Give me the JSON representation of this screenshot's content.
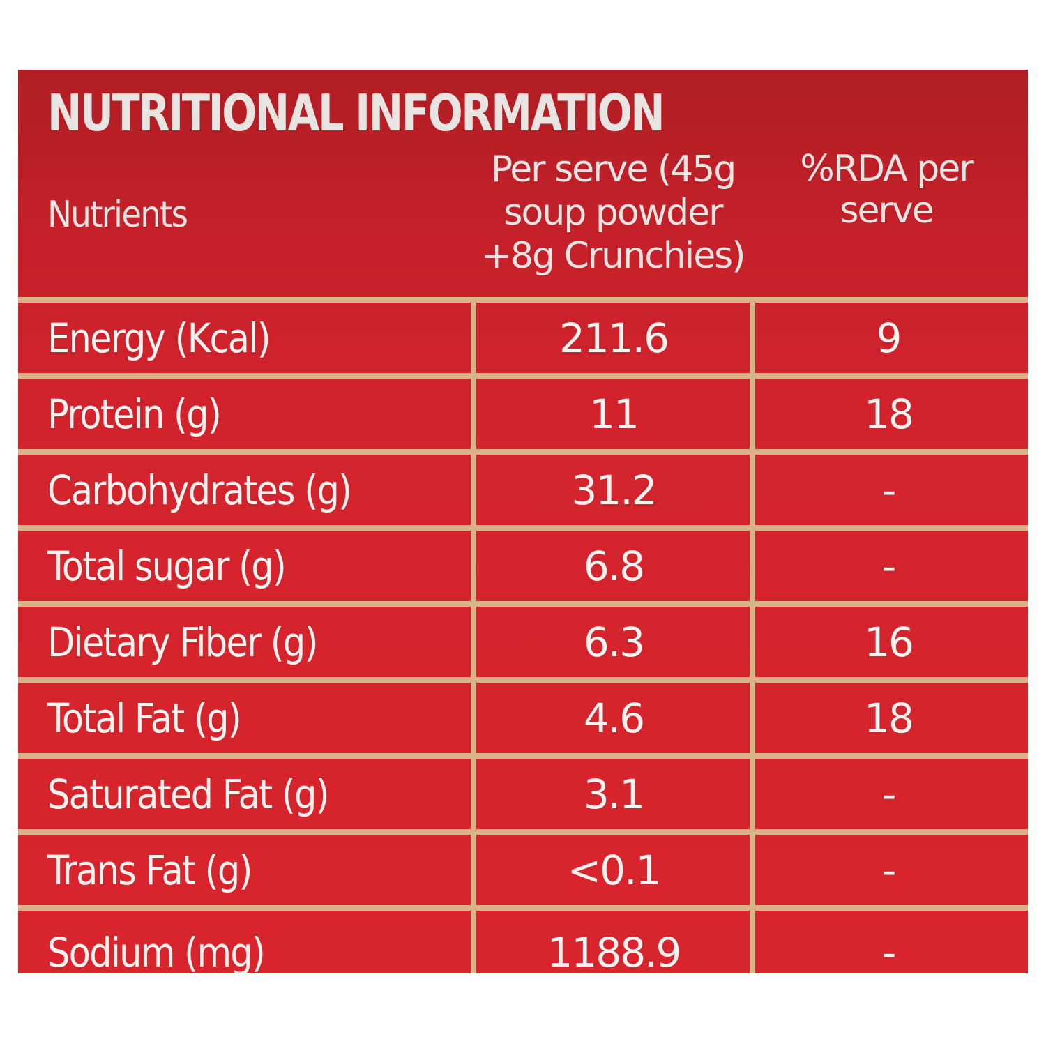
{
  "label": {
    "title": "NUTRITIONAL INFORMATION",
    "headers": {
      "nutrients": "Nutrients",
      "per_serve": [
        "Per serve (45g",
        "soup powder",
        "+8g Crunchies)"
      ],
      "rda": [
        "%RDA per",
        "serve"
      ]
    },
    "rows": [
      {
        "name": "Energy (Kcal)",
        "value": "211.6",
        "rda": "9"
      },
      {
        "name": "Protein (g)",
        "value": "11",
        "rda": "18"
      },
      {
        "name": "Carbohydrates (g)",
        "value": "31.2",
        "rda": "-"
      },
      {
        "name": "Total sugar (g)",
        "value": "6.8",
        "rda": "-"
      },
      {
        "name": "Dietary Fiber (g)",
        "value": "6.3",
        "rda": "16"
      },
      {
        "name": "Total Fat (g)",
        "value": "4.6",
        "rda": "18"
      },
      {
        "name": "Saturated Fat (g)",
        "value": "3.1",
        "rda": "-"
      },
      {
        "name": "Trans Fat (g)",
        "value": "<0.1",
        "rda": "-"
      },
      {
        "name": "Sodium (mg)",
        "value": "1188.9",
        "rda": "-"
      }
    ]
  },
  "colors": {
    "background": "#d8242d",
    "header_background": "#b01e23",
    "grid_lines": "#d8b388",
    "text": "#f6f2ef"
  }
}
